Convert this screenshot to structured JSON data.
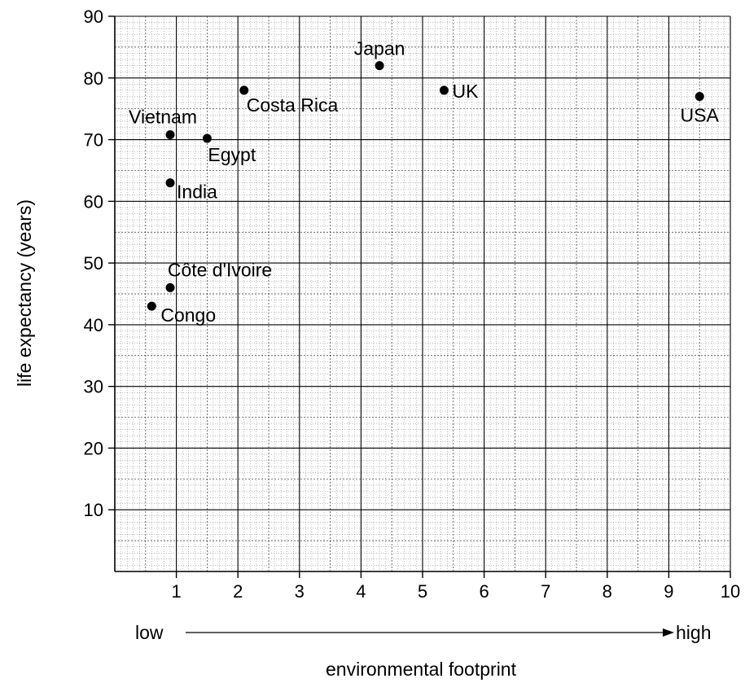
{
  "chart_data": {
    "type": "scatter",
    "xlabel": "environmental footprint",
    "ylabel": "life expectancy (years)",
    "xlim": [
      0,
      10
    ],
    "ylim": [
      0,
      90
    ],
    "x_ticks": [
      1,
      2,
      3,
      4,
      5,
      6,
      7,
      8,
      9,
      10
    ],
    "y_ticks": [
      10,
      20,
      30,
      40,
      50,
      60,
      70,
      80,
      90
    ],
    "x_arrow": {
      "start_label": "low",
      "end_label": "high"
    },
    "grid": true,
    "colors": {
      "points": "#000000",
      "grid": "#000000"
    },
    "points": [
      {
        "label": "Japan",
        "x": 4.3,
        "y": 82
      },
      {
        "label": "UK",
        "x": 5.35,
        "y": 78
      },
      {
        "label": "USA",
        "x": 9.5,
        "y": 77
      },
      {
        "label": "Costa Rica",
        "x": 2.1,
        "y": 78
      },
      {
        "label": "Vietnam",
        "x": 0.9,
        "y": 70.8
      },
      {
        "label": "Egypt",
        "x": 1.5,
        "y": 70.2
      },
      {
        "label": "India",
        "x": 0.9,
        "y": 63
      },
      {
        "label": "Côte d'Ivoire",
        "x": 0.9,
        "y": 46
      },
      {
        "label": "Congo",
        "x": 0.6,
        "y": 43
      }
    ]
  }
}
